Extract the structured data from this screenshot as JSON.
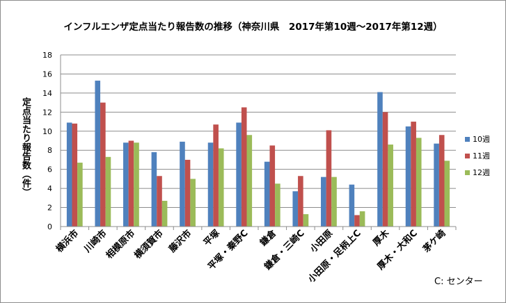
{
  "chart_data": {
    "type": "bar",
    "title": "インフルエンザ定点当たり報告数の推移（神奈川県　2017年第10週～2017年第12週）",
    "ylabel": "定点当たり報告数（件）",
    "xlabel": "",
    "ylim": [
      0,
      18
    ],
    "yticks": [
      0,
      2,
      4,
      6,
      8,
      10,
      12,
      14,
      16,
      18
    ],
    "grid": true,
    "legend_position": "right",
    "categories": [
      "横浜市",
      "川崎市",
      "相模原市",
      "横須賀市",
      "藤沢市",
      "平塚",
      "平塚・秦野C",
      "鎌倉",
      "鎌倉・三崎C",
      "小田原",
      "小田原・足柄上C",
      "厚木",
      "厚木・大和C",
      "茅ケ崎"
    ],
    "series": [
      {
        "name": "10週",
        "color": "#4f81bd",
        "values": [
          10.9,
          15.3,
          8.8,
          7.8,
          8.9,
          8.8,
          10.9,
          6.8,
          3.7,
          5.2,
          4.4,
          14.1,
          10.5,
          8.7
        ]
      },
      {
        "name": "11週",
        "color": "#c0504d",
        "values": [
          10.8,
          13.0,
          9.0,
          5.3,
          7.0,
          10.7,
          12.5,
          8.5,
          5.3,
          10.1,
          1.2,
          12.0,
          11.0,
          9.6
        ]
      },
      {
        "name": "12週",
        "color": "#9bbb59",
        "values": [
          6.7,
          7.3,
          8.8,
          2.7,
          5.0,
          8.2,
          9.6,
          4.5,
          1.3,
          5.2,
          1.6,
          8.6,
          9.3,
          6.9
        ]
      }
    ],
    "note": "C: センター"
  }
}
